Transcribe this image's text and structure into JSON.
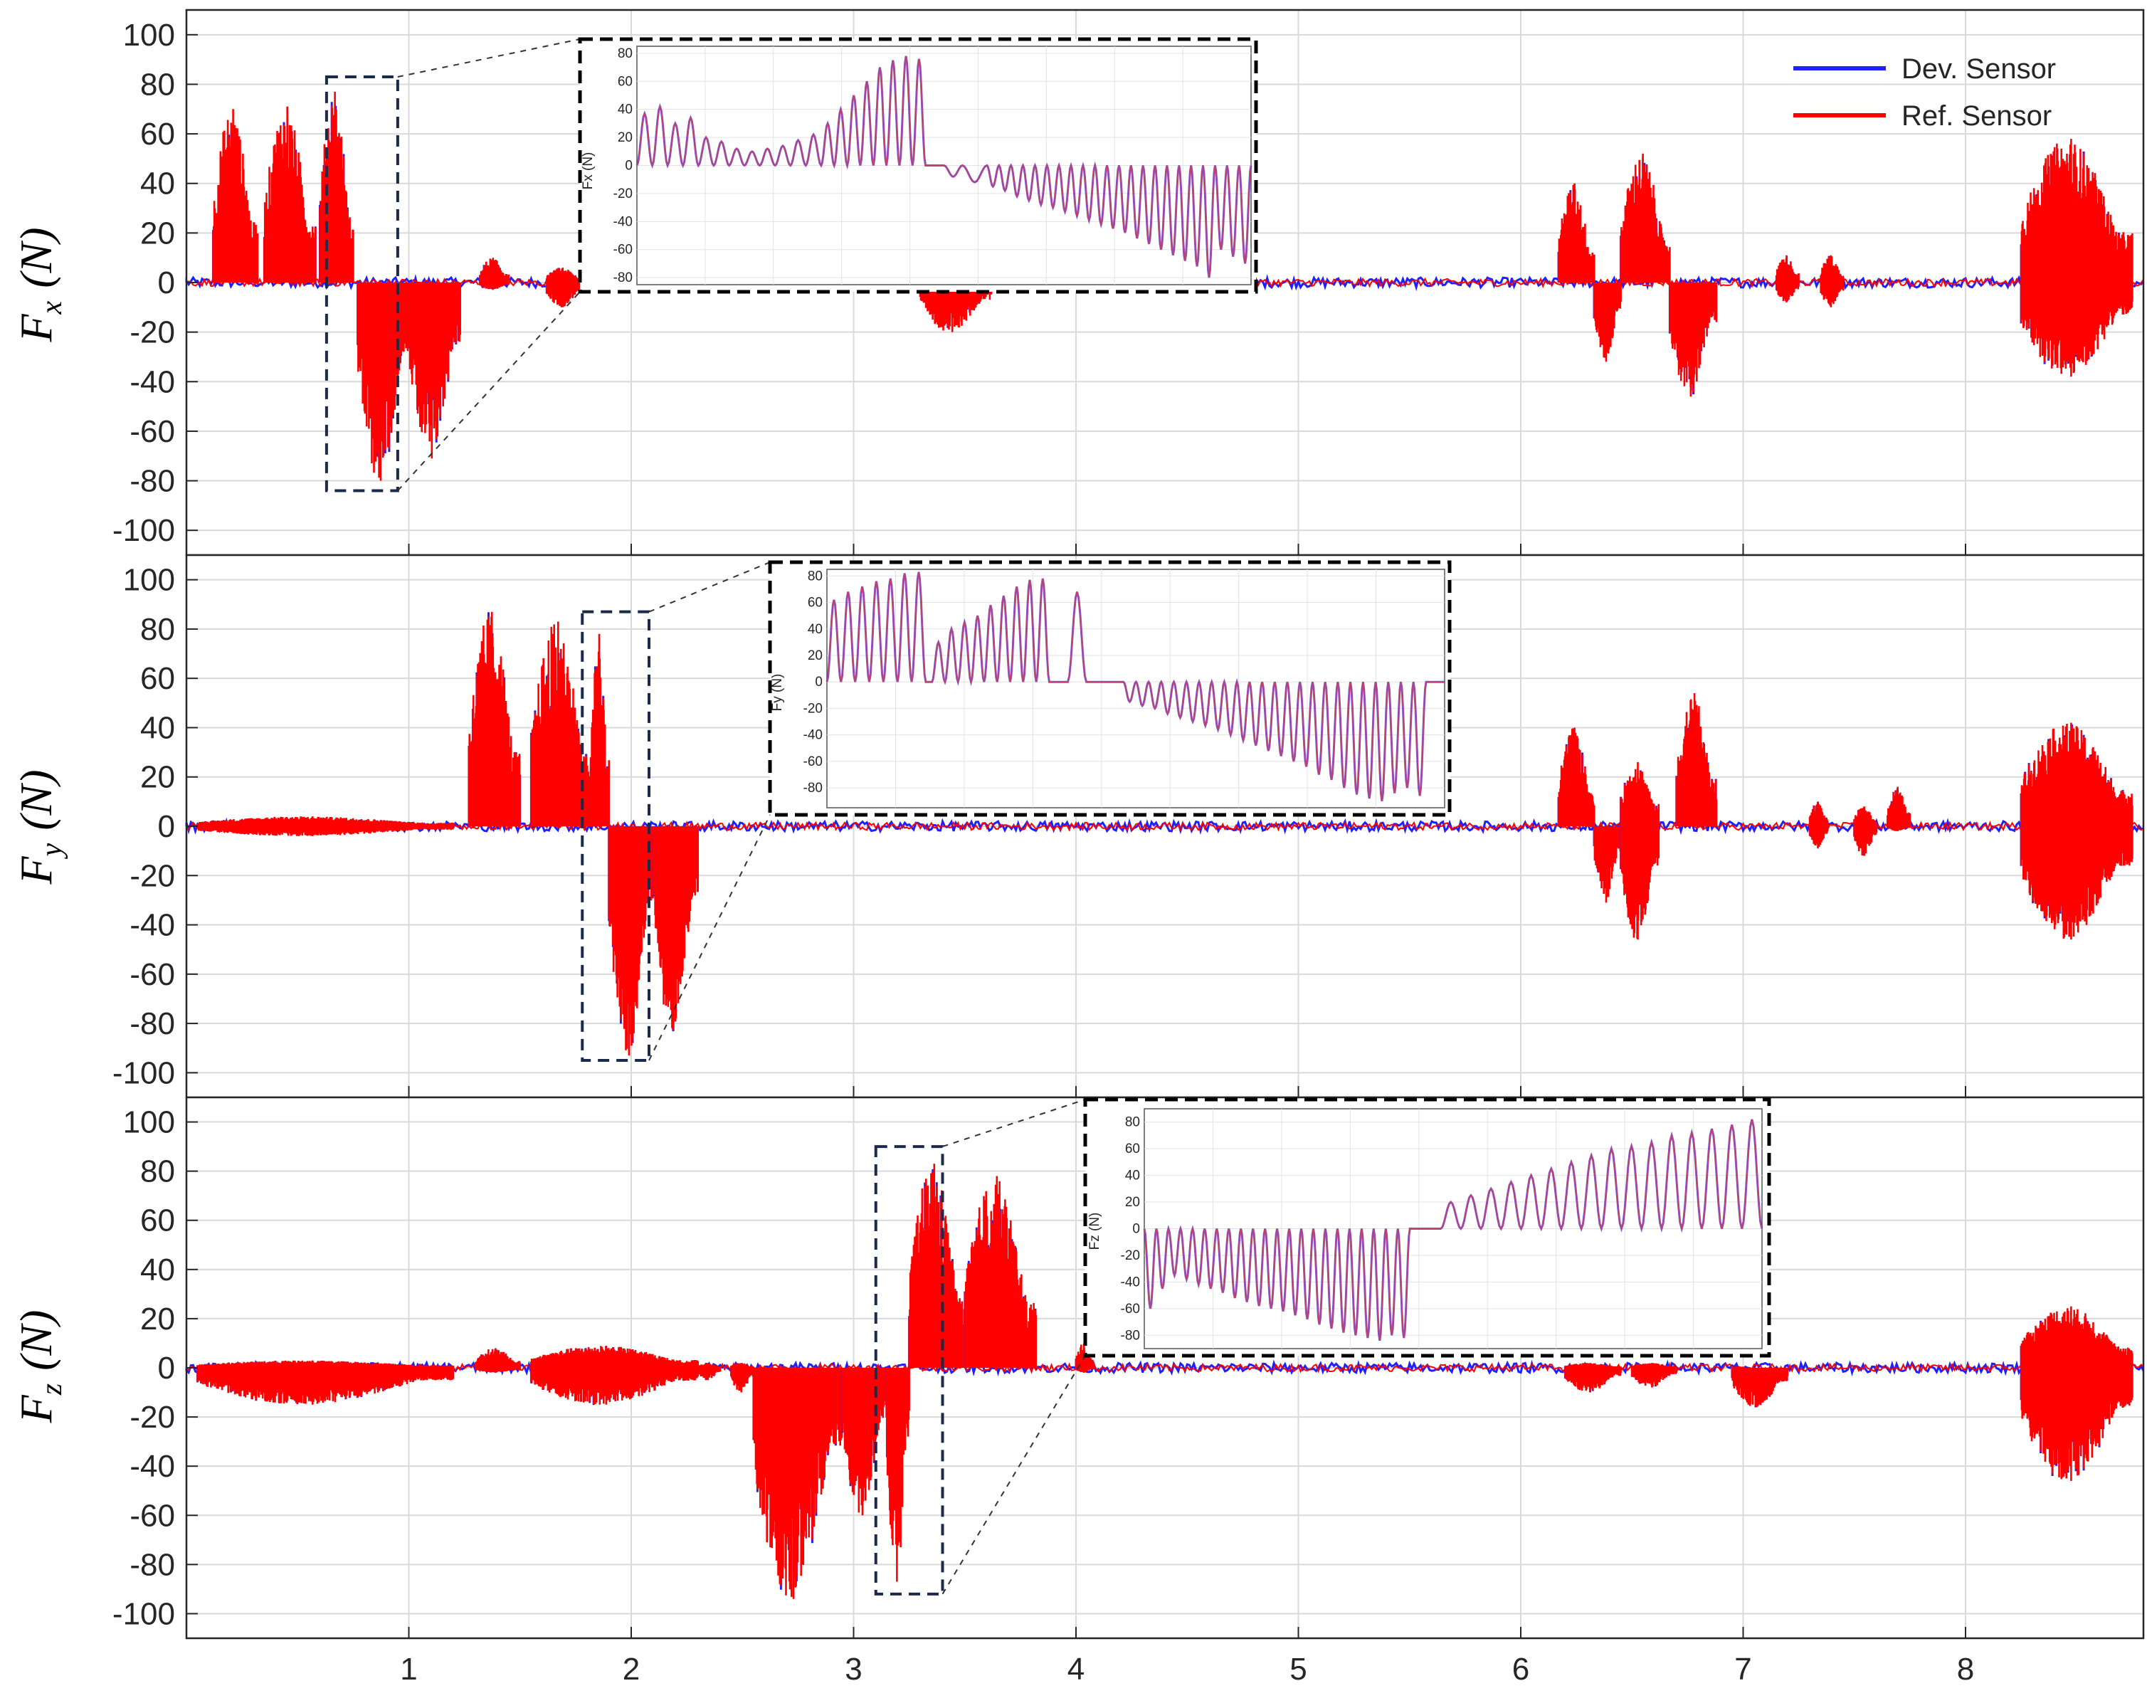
{
  "colors": {
    "dev": "#1f1fff",
    "ref": "#ff0000",
    "inset_line": "#c04070",
    "grid": "#d9d9d9",
    "axis": "#262626",
    "zoom_box": "#1a2a4a"
  },
  "legend": {
    "placement": "top-right",
    "items": [
      {
        "label": "Dev. Sensor",
        "color": "#1f1fff"
      },
      {
        "label": "Ref. Sensor",
        "color": "#ff0000"
      }
    ]
  },
  "chart_data": [
    {
      "type": "line",
      "ylabel_main": "F",
      "ylabel_sub": "x",
      "ylabel_unit": "(N)",
      "xlim": [
        0,
        8.8
      ],
      "ylim": [
        -110,
        110
      ],
      "xticks": [
        1,
        2,
        3,
        4,
        5,
        6,
        7,
        8
      ],
      "yticks": [
        -100,
        -80,
        -60,
        -40,
        -20,
        0,
        20,
        40,
        60,
        80,
        100
      ],
      "grid": true,
      "show_xtick_labels": false,
      "series_names": [
        "Dev. Sensor",
        "Ref. Sensor"
      ],
      "bursts": [
        {
          "x0": 0.12,
          "x1": 0.32,
          "min": 0,
          "max": 70
        },
        {
          "x0": 0.35,
          "x1": 0.58,
          "min": 0,
          "max": 71
        },
        {
          "x0": 0.6,
          "x1": 0.75,
          "min": 0,
          "max": 77
        },
        {
          "x0": 0.77,
          "x1": 1.0,
          "min": -80,
          "max": 0
        },
        {
          "x0": 1.0,
          "x1": 1.23,
          "min": -71,
          "max": 0
        },
        {
          "x0": 1.32,
          "x1": 1.45,
          "min": -3,
          "max": 10
        },
        {
          "x0": 1.62,
          "x1": 1.78,
          "min": -10,
          "max": 6
        },
        {
          "x0": 3.3,
          "x1": 3.62,
          "min": -20,
          "max": 4
        },
        {
          "x0": 6.17,
          "x1": 6.33,
          "min": 0,
          "max": 40
        },
        {
          "x0": 6.33,
          "x1": 6.45,
          "min": -32,
          "max": 0
        },
        {
          "x0": 6.45,
          "x1": 6.67,
          "min": 0,
          "max": 52
        },
        {
          "x0": 6.67,
          "x1": 6.88,
          "min": -46,
          "max": 0
        },
        {
          "x0": 7.15,
          "x1": 7.25,
          "min": -8,
          "max": 11
        },
        {
          "x0": 7.35,
          "x1": 7.45,
          "min": -10,
          "max": 11
        },
        {
          "x0": 8.25,
          "x1": 8.75,
          "min": -38,
          "max": 58
        }
      ],
      "zoom_box": {
        "x": [
          0.63,
          0.95
        ],
        "y": [
          -84,
          83
        ]
      },
      "inset": {
        "ylabel": "Fx (N)",
        "ylim": [
          -85,
          85
        ],
        "yticks": [
          -80,
          -60,
          -40,
          -20,
          0,
          20,
          40,
          60,
          80
        ],
        "segments": [
          {
            "t0": 0.0,
            "t1": 0.3,
            "n": 12,
            "peaks": [
              37,
              42,
              30,
              34,
              20,
              17,
              12,
              10,
              12,
              14,
              18,
              22
            ]
          },
          {
            "t0": 0.3,
            "t1": 0.32,
            "n": 0,
            "peaks": []
          },
          {
            "t0": 0.3,
            "t1": 0.47,
            "n": 8,
            "peaks": [
              30,
              40,
              50,
              60,
              70,
              75,
              78,
              76
            ]
          },
          {
            "t0": 0.5,
            "t1": 0.53,
            "n": 1,
            "peaks": [
              -8
            ]
          },
          {
            "t0": 0.53,
            "t1": 0.57,
            "n": 1,
            "peaks": [
              -12
            ]
          },
          {
            "t0": 0.57,
            "t1": 1.0,
            "n": 22,
            "peaks": [
              -15,
              -18,
              -22,
              -25,
              -28,
              -30,
              -33,
              -36,
              -39,
              -42,
              -45,
              -48,
              -52,
              -56,
              -60,
              -64,
              -68,
              -72,
              -80,
              -60,
              -65,
              -70
            ]
          }
        ]
      }
    },
    {
      "type": "line",
      "ylabel_main": "F",
      "ylabel_sub": "y",
      "ylabel_unit": "(N)",
      "xlim": [
        0,
        8.8
      ],
      "ylim": [
        -110,
        110
      ],
      "xticks": [
        1,
        2,
        3,
        4,
        5,
        6,
        7,
        8
      ],
      "yticks": [
        -100,
        -80,
        -60,
        -40,
        -20,
        0,
        20,
        40,
        60,
        80,
        100
      ],
      "grid": true,
      "show_xtick_labels": false,
      "series_names": [
        "Dev. Sensor",
        "Ref. Sensor"
      ],
      "bursts": [
        {
          "x0": 0.05,
          "x1": 1.2,
          "min": -4,
          "max": 4
        },
        {
          "x0": 1.27,
          "x1": 1.5,
          "min": 0,
          "max": 87
        },
        {
          "x0": 1.55,
          "x1": 1.82,
          "min": 0,
          "max": 83
        },
        {
          "x0": 1.82,
          "x1": 1.9,
          "min": 0,
          "max": 78
        },
        {
          "x0": 1.9,
          "x1": 2.1,
          "min": -93,
          "max": 0
        },
        {
          "x0": 2.1,
          "x1": 2.3,
          "min": -83,
          "max": 0
        },
        {
          "x0": 6.17,
          "x1": 6.33,
          "min": 0,
          "max": 40
        },
        {
          "x0": 6.33,
          "x1": 6.45,
          "min": -31,
          "max": 0
        },
        {
          "x0": 6.45,
          "x1": 6.62,
          "min": -46,
          "max": 26
        },
        {
          "x0": 6.7,
          "x1": 6.88,
          "min": 0,
          "max": 54
        },
        {
          "x0": 7.3,
          "x1": 7.38,
          "min": -9,
          "max": 10
        },
        {
          "x0": 7.5,
          "x1": 7.6,
          "min": -12,
          "max": 8
        },
        {
          "x0": 7.65,
          "x1": 7.75,
          "min": -2,
          "max": 16
        },
        {
          "x0": 8.25,
          "x1": 8.75,
          "min": -46,
          "max": 42
        }
      ],
      "zoom_box": {
        "x": [
          1.78,
          2.08
        ],
        "y": [
          -95,
          87
        ]
      },
      "inset": {
        "ylabel": "Fy (N)",
        "ylim": [
          -95,
          85
        ],
        "yticks": [
          -80,
          -60,
          -40,
          -20,
          0,
          20,
          40,
          60,
          80
        ],
        "segments": [
          {
            "t0": 0.0,
            "t1": 0.16,
            "n": 7,
            "peaks": [
              62,
              68,
              72,
              76,
              78,
              82,
              83
            ]
          },
          {
            "t0": 0.17,
            "t1": 0.36,
            "n": 9,
            "peaks": [
              30,
              40,
              45,
              50,
              58,
              65,
              72,
              77,
              78
            ]
          },
          {
            "t0": 0.39,
            "t1": 0.42,
            "n": 1,
            "peaks": [
              68
            ]
          },
          {
            "t0": 0.48,
            "t1": 0.97,
            "n": 24,
            "peaks": [
              -15,
              -18,
              -20,
              -24,
              -27,
              -30,
              -33,
              -36,
              -40,
              -44,
              -48,
              -52,
              -56,
              -60,
              -64,
              -70,
              -74,
              -80,
              -85,
              -88,
              -90,
              -84,
              -80,
              -86
            ]
          }
        ]
      }
    },
    {
      "type": "line",
      "ylabel_main": "F",
      "ylabel_sub": "z",
      "ylabel_unit": "(N)",
      "xlim": [
        0,
        8.8
      ],
      "ylim": [
        -110,
        110
      ],
      "xticks": [
        1,
        2,
        3,
        4,
        5,
        6,
        7,
        8
      ],
      "yticks": [
        -100,
        -80,
        -60,
        -40,
        -20,
        0,
        20,
        40,
        60,
        80,
        100
      ],
      "xtick_labels": [
        "1",
        "2",
        "3",
        "4",
        "5",
        "6",
        "7",
        "8"
      ],
      "grid": true,
      "show_xtick_labels": true,
      "series_names": [
        "Dev. Sensor",
        "Ref. Sensor"
      ],
      "bursts": [
        {
          "x0": 0.05,
          "x1": 1.2,
          "min": -15,
          "max": 3
        },
        {
          "x0": 1.3,
          "x1": 1.5,
          "min": -2,
          "max": 8
        },
        {
          "x0": 1.55,
          "x1": 2.3,
          "min": -15,
          "max": 9
        },
        {
          "x0": 2.3,
          "x1": 2.4,
          "min": -5,
          "max": 2
        },
        {
          "x0": 2.45,
          "x1": 2.55,
          "min": -10,
          "max": 2
        },
        {
          "x0": 2.55,
          "x1": 2.95,
          "min": -94,
          "max": 0
        },
        {
          "x0": 2.95,
          "x1": 3.15,
          "min": -60,
          "max": 0
        },
        {
          "x0": 3.15,
          "x1": 3.25,
          "min": -87,
          "max": 0
        },
        {
          "x0": 3.25,
          "x1": 3.5,
          "min": 0,
          "max": 83
        },
        {
          "x0": 3.5,
          "x1": 3.82,
          "min": 0,
          "max": 78
        },
        {
          "x0": 4.0,
          "x1": 4.08,
          "min": -2,
          "max": 10
        },
        {
          "x0": 6.2,
          "x1": 6.45,
          "min": -10,
          "max": 2
        },
        {
          "x0": 6.5,
          "x1": 6.7,
          "min": -8,
          "max": 2
        },
        {
          "x0": 6.95,
          "x1": 7.2,
          "min": -16,
          "max": 0
        },
        {
          "x0": 8.25,
          "x1": 8.75,
          "min": -46,
          "max": 25
        }
      ],
      "zoom_box": {
        "x": [
          3.1,
          3.4
        ],
        "y": [
          -92,
          90
        ]
      },
      "inset": {
        "ylabel": "Fz (N)",
        "ylim": [
          -90,
          90
        ],
        "yticks": [
          -80,
          -60,
          -40,
          -20,
          0,
          20,
          40,
          60,
          80
        ],
        "segments": [
          {
            "t0": 0.0,
            "t1": 0.43,
            "n": 22,
            "peaks": [
              -60,
              -45,
              -35,
              -38,
              -42,
              -45,
              -48,
              -52,
              -55,
              -58,
              -60,
              -62,
              -65,
              -68,
              -72,
              -75,
              -78,
              -80,
              -82,
              -84,
              -80,
              -82
            ]
          },
          {
            "t0": 0.48,
            "t1": 1.0,
            "n": 16,
            "peaks": [
              20,
              25,
              30,
              35,
              40,
              45,
              50,
              55,
              60,
              62,
              65,
              70,
              72,
              75,
              78,
              82
            ]
          }
        ]
      }
    }
  ]
}
